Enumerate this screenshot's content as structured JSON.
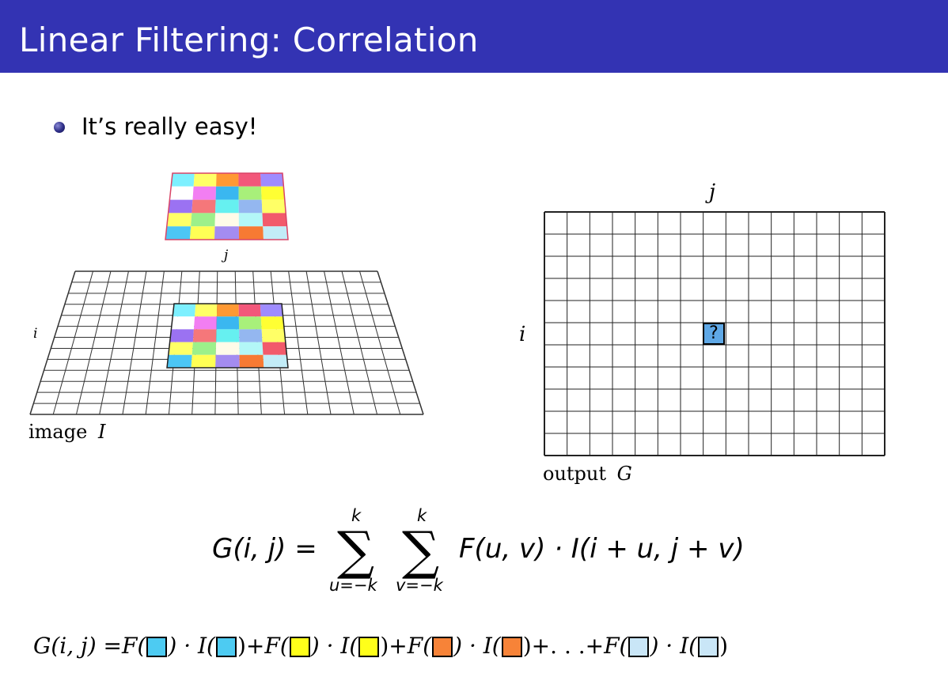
{
  "slide": {
    "title": "Linear Filtering: Correlation",
    "bullet": "It’s really easy!"
  },
  "left_figure": {
    "caption_word": "image",
    "caption_symbol": "I",
    "axis_i": "i",
    "axis_j": "j",
    "filter_colors": [
      [
        "#7df0ff",
        "#ffff66",
        "#ff9933",
        "#f2577a",
        "#9f8cff"
      ],
      [
        "#ffffff",
        "#f27ef2",
        "#3ab7f0",
        "#a8f07a",
        "#ffff33"
      ],
      [
        "#9b72f2",
        "#f5777a",
        "#66f0f0",
        "#94b7f0",
        "#ffff66"
      ],
      [
        "#ffff66",
        "#9cf08a",
        "#fffbe8",
        "#b3f7f7",
        "#f25a6b"
      ],
      [
        "#4cc6f5",
        "#ffff55",
        "#a48cf0",
        "#f77a33",
        "#c2ecf7"
      ]
    ]
  },
  "right_figure": {
    "caption_word": "output",
    "caption_symbol": "G",
    "axis_i": "i",
    "axis_j": "j",
    "unknown_cell": "?"
  },
  "formula1": {
    "lhs": "G(i, j) =",
    "sum1_top": "k",
    "sum1_bottom": "u=−k",
    "sum2_top": "k",
    "sum2_bottom": "v=−k",
    "sigma": "∑",
    "rhs": "F(u, v) · I(i + u, j + v)"
  },
  "formula2": {
    "lhs": "G(i, j) = ",
    "F": "F(",
    "close_dot_I": ") · I(",
    "close": ")",
    "plus": " + ",
    "ellipsis": " . . . ",
    "swatch_colors": [
      "#4dcbf2",
      "#ffff1a",
      "#f78338",
      "#c9e6f7"
    ]
  }
}
